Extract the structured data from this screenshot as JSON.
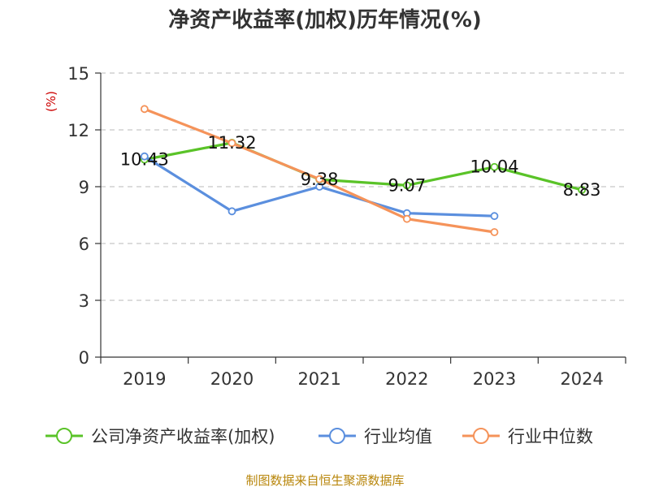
{
  "chart_data": {
    "type": "line",
    "title": "净资产收益率(加权)历年情况(%)",
    "ylabel": "(%)",
    "xlabel": "",
    "categories": [
      "2019",
      "2020",
      "2021",
      "2022",
      "2023",
      "2024"
    ],
    "ylim": [
      0,
      15
    ],
    "yticks": [
      0,
      3,
      6,
      9,
      12,
      15
    ],
    "grid": true,
    "legend_position": "bottom",
    "series": [
      {
        "name": "公司净资产收益率(加权)",
        "color": "#5ac328",
        "values": [
          10.43,
          11.32,
          9.38,
          9.07,
          10.04,
          8.83
        ],
        "labels": [
          "10.43",
          "11.32",
          "9.38",
          "9.07",
          "10.04",
          "8.83"
        ]
      },
      {
        "name": "行业均值",
        "color": "#5b8fde",
        "values": [
          10.6,
          7.7,
          9.0,
          7.6,
          7.45,
          null
        ]
      },
      {
        "name": "行业中位数",
        "color": "#f5935a",
        "values": [
          13.1,
          11.3,
          9.4,
          7.3,
          6.6,
          null
        ]
      }
    ]
  },
  "source": "制图数据来自恒生聚源数据库"
}
